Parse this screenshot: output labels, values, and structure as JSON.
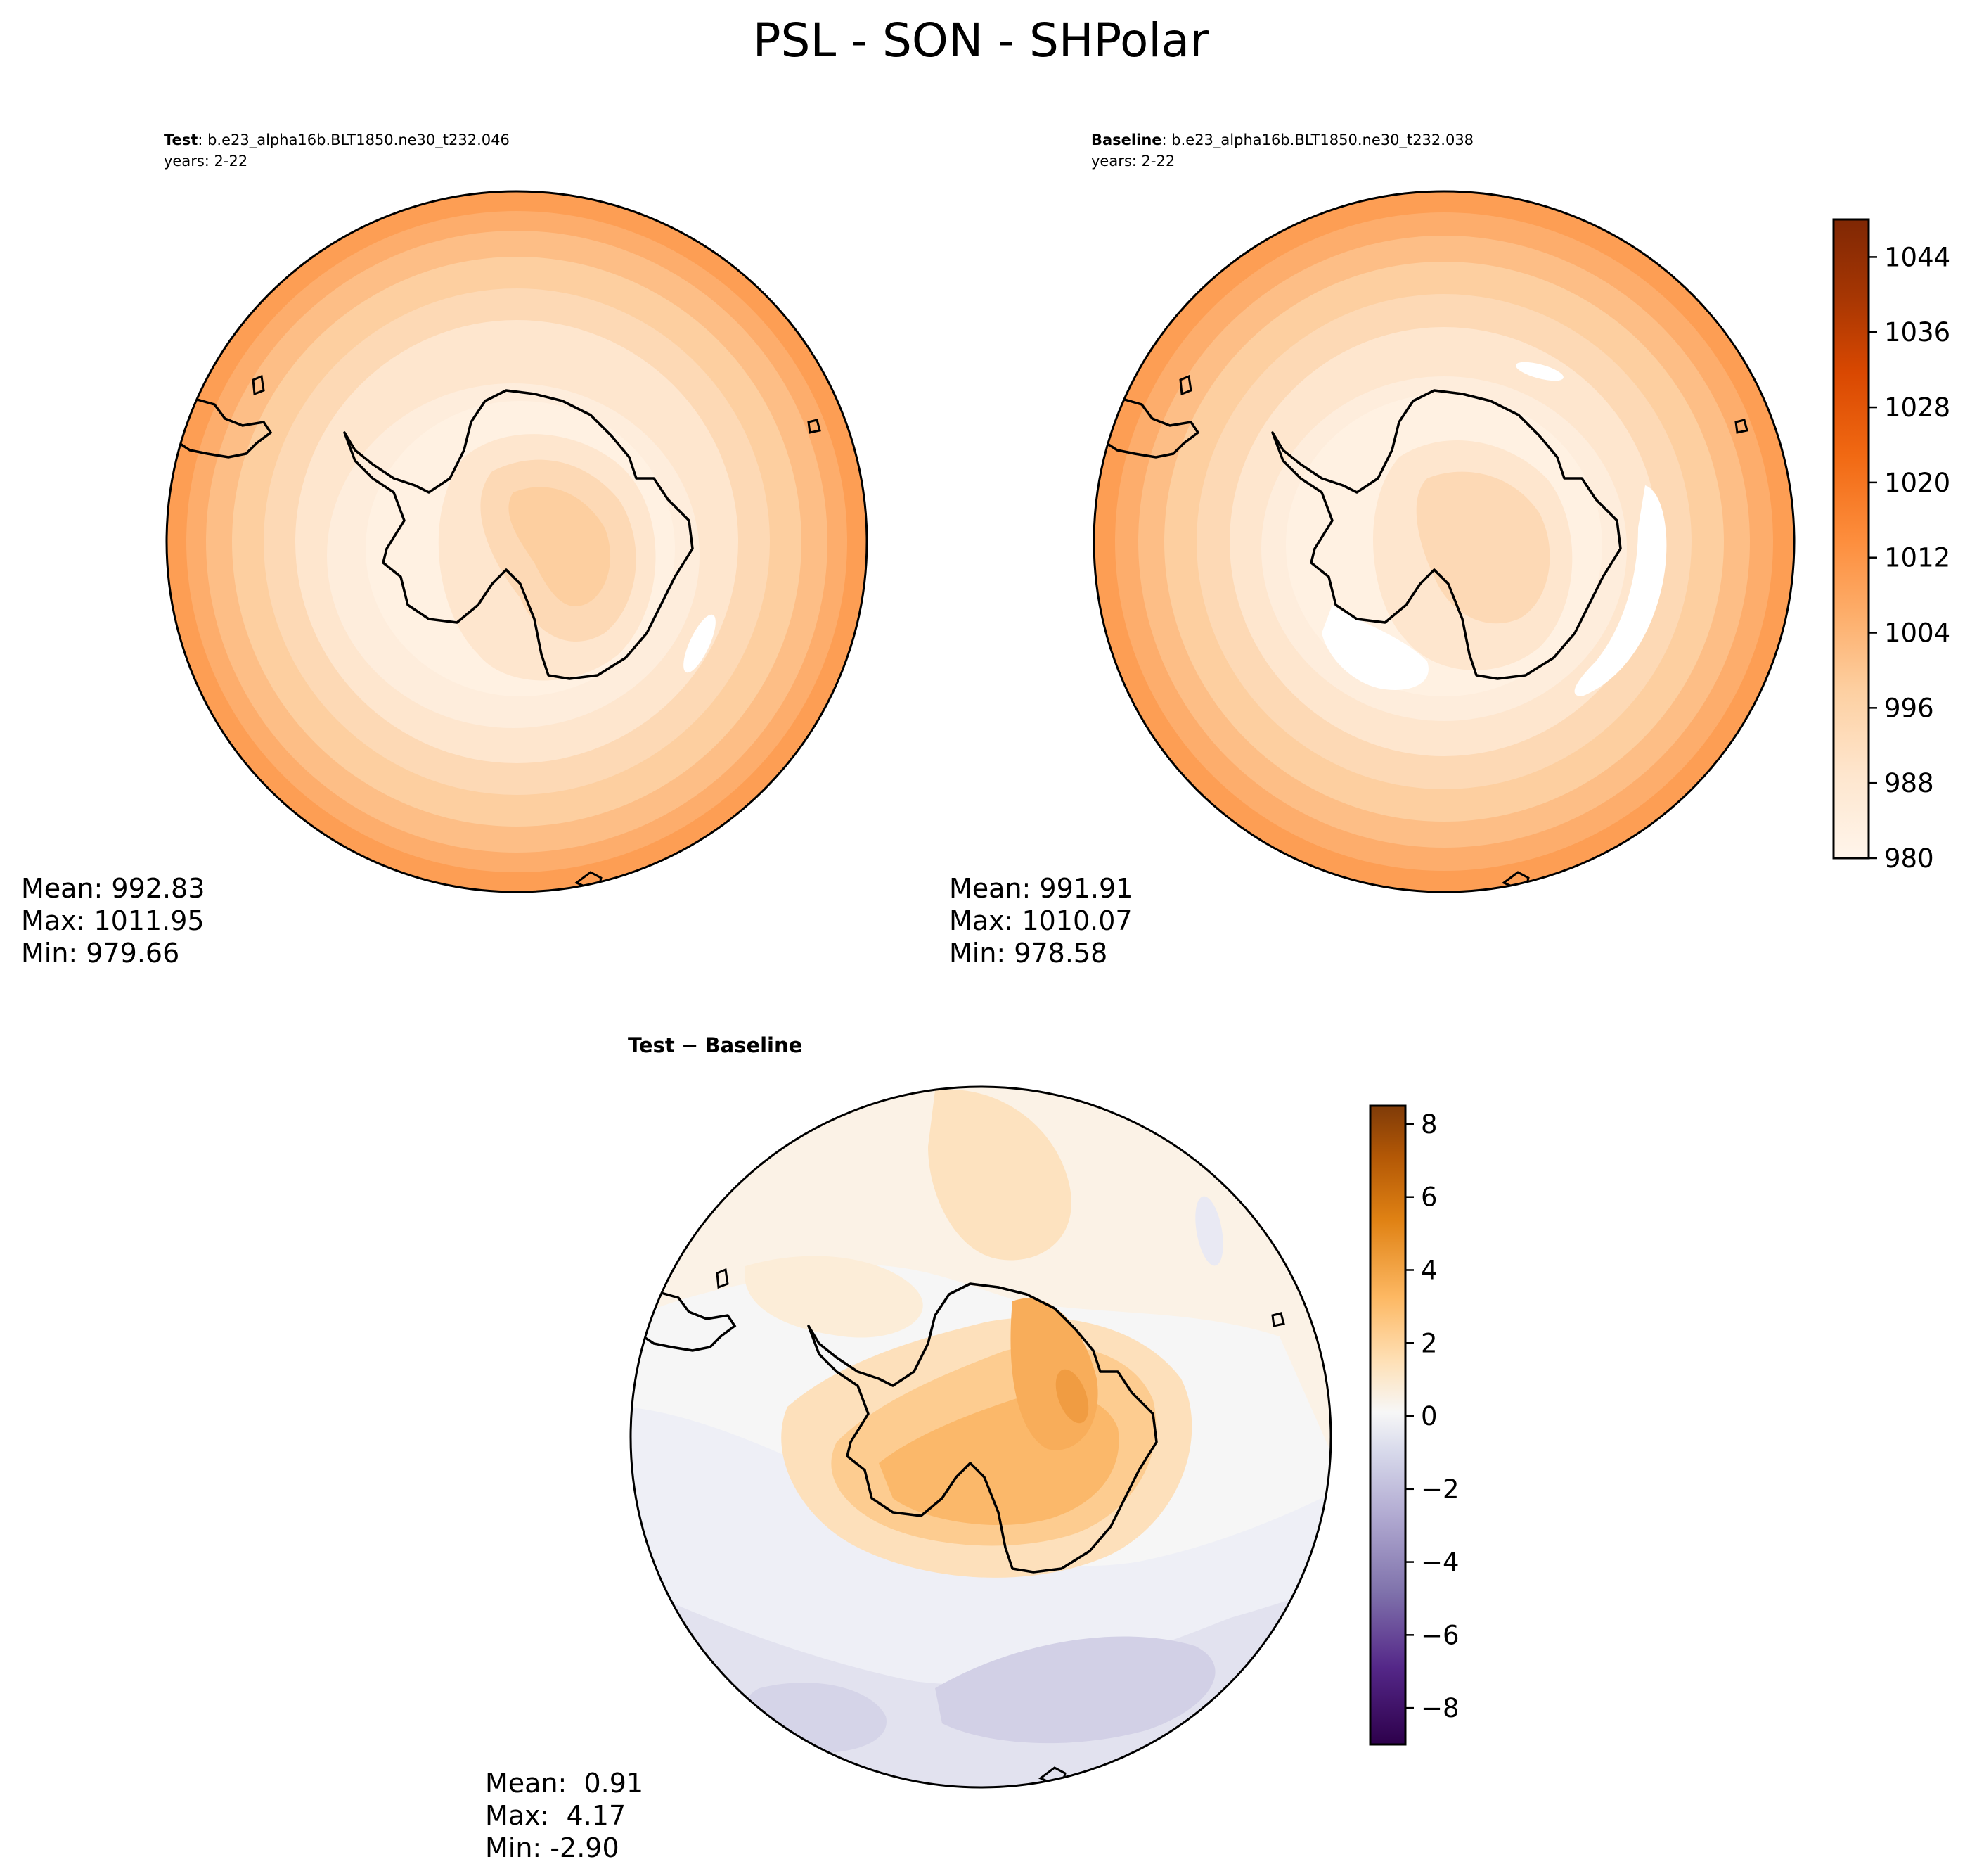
{
  "page": {
    "title": "PSL - SON - SHPolar"
  },
  "chart_data": [
    {
      "type": "heatmap",
      "projection": "south polar stereographic",
      "title_bold": "Test",
      "title_rest": ": b.e23_alpha16b.BLT1850.ne30_t232.046",
      "subtitle": "years: 2-22",
      "field_description": "zonally banded; ~990 over interior, rising to ~1010 at rim; ~1000-1004 over Antarctic plateau",
      "stats": {
        "mean_label": "Mean: 992.83",
        "max_label": "Max: 1011.95",
        "min_label": "Min: 979.66",
        "mean": 992.83,
        "max": 1011.95,
        "min": 979.66
      },
      "colormap": "Oranges",
      "colorbar_ref": 0
    },
    {
      "type": "heatmap",
      "projection": "south polar stereographic",
      "title_bold": "Baseline",
      "title_rest": ": b.e23_alpha16b.BLT1850.ne30_t232.038",
      "subtitle": "years: 2-22",
      "field_description": "zonally banded; ~988 interior, ~1008 at rim, sub-980 patches near 0° and 100°E",
      "stats": {
        "mean_label": "Mean: 991.91",
        "max_label": "Max: 1010.07",
        "min_label": "Min: 978.58",
        "mean": 991.91,
        "max": 1010.07,
        "min": 978.58
      },
      "colormap": "Oranges",
      "colorbar_ref": 0
    },
    {
      "type": "heatmap",
      "projection": "south polar stereographic",
      "title_bold": "Test",
      "title_sep": " − ",
      "title_bold2": "Baseline",
      "field_description": "positive (2-4) over East Antarctica, weakly positive elsewhere in north half, negative (-1 to -3) in southern sector",
      "stats": {
        "mean_label": "Mean:  0.91",
        "max_label": "Max:  4.17",
        "min_label": "Min: -2.90",
        "mean": 0.91,
        "max": 4.17,
        "min": -2.9
      },
      "colormap": "PuOr_r",
      "colorbar_ref": 1
    }
  ],
  "colorbars": [
    {
      "levels_min": 980,
      "levels_max": 1048,
      "step": 4,
      "ticks": [
        "980",
        "988",
        "996",
        "1004",
        "1012",
        "1020",
        "1028",
        "1036",
        "1044"
      ],
      "tick_values": [
        980,
        988,
        996,
        1004,
        1012,
        1020,
        1028,
        1036,
        1044
      ],
      "colors": [
        "#fff5eb",
        "#feeddc",
        "#fee6ce",
        "#fdd9b5",
        "#fdcfa0",
        "#fdbe86",
        "#fdad6c",
        "#fd9e54",
        "#fb8d3d",
        "#f67d2a",
        "#ee6b19",
        "#e35a0c",
        "#d94901",
        "#c04102",
        "#a63603",
        "#923004",
        "#7f2704"
      ]
    },
    {
      "levels_min": -9,
      "levels_max": 8.5,
      "step": 0.5,
      "ticks": [
        "−8",
        "−6",
        "−4",
        "−2",
        "0",
        "2",
        "4",
        "6",
        "8"
      ],
      "tick_values": [
        -8,
        -6,
        -4,
        -2,
        0,
        2,
        4,
        6,
        8
      ],
      "colors": [
        "#2d004b",
        "#e1e1ef",
        "#f7f7f7",
        "#fde2b9",
        "#7f3b08"
      ]
    }
  ]
}
